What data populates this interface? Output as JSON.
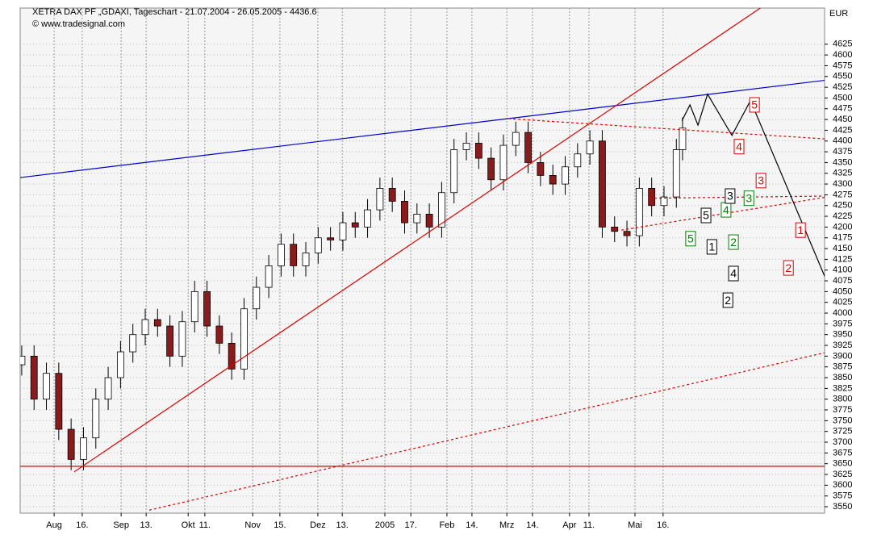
{
  "chart_data": {
    "type": "candlestick",
    "title": "XETRA DAX PF „GDAXI, Tageschart - 21.07.2004 - 26.05.2005 - 4436.6",
    "subtitle": "© www.tradesignal.com",
    "y_unit": "EUR",
    "xlim": [
      -0.5,
      260
    ],
    "ylim": [
      3535,
      4709
    ],
    "grid": true,
    "up_color": "#ffffff",
    "down_color": "#8b1a1a",
    "xticks": [
      {
        "value": 10.5,
        "label": "Aug"
      },
      {
        "value": 19.6,
        "label": "16."
      },
      {
        "value": 32.2,
        "label": "Sep"
      },
      {
        "value": 40.3,
        "label": "13."
      },
      {
        "value": 53.9,
        "label": "Okt"
      },
      {
        "value": 59.3,
        "label": "11."
      },
      {
        "value": 74.8,
        "label": "Nov"
      },
      {
        "value": 83.6,
        "label": "15."
      },
      {
        "value": 95.9,
        "label": "Dez"
      },
      {
        "value": 103.8,
        "label": "13."
      },
      {
        "value": 117.6,
        "label": "2005"
      },
      {
        "value": 126,
        "label": "17."
      },
      {
        "value": 137.7,
        "label": "Feb"
      },
      {
        "value": 145.8,
        "label": "14."
      },
      {
        "value": 157.1,
        "label": "Mrz"
      },
      {
        "value": 165.4,
        "label": "14."
      },
      {
        "value": 177.4,
        "label": "Apr"
      },
      {
        "value": 183.7,
        "label": "11."
      },
      {
        "value": 198.6,
        "label": "Mai"
      },
      {
        "value": 207.7,
        "label": "16."
      }
    ],
    "yticks": [
      3550,
      3575,
      3600,
      3625,
      3650,
      3675,
      3700,
      3725,
      3750,
      3775,
      3800,
      3825,
      3850,
      3875,
      3900,
      3925,
      3950,
      3975,
      4000,
      4025,
      4050,
      4075,
      4100,
      4125,
      4150,
      4175,
      4200,
      4225,
      4250,
      4275,
      4300,
      4325,
      4350,
      4375,
      4400,
      4425,
      4450,
      4475,
      4500,
      4525,
      4550,
      4575,
      4600,
      4625
    ],
    "x": [
      0,
      4,
      8,
      12,
      16,
      20,
      24,
      28,
      32,
      36,
      40,
      44,
      48,
      52,
      56,
      60,
      64,
      68,
      72,
      76,
      80,
      84,
      88,
      92,
      96,
      100,
      104,
      108,
      112,
      116,
      120,
      124,
      128,
      132,
      136,
      140,
      144,
      148,
      152,
      156,
      160,
      164,
      168,
      172,
      176,
      180,
      184,
      188,
      192,
      196,
      200,
      204,
      208,
      212,
      214
    ],
    "open": [
      3880,
      3900,
      3800,
      3860,
      3730,
      3660,
      3710,
      3800,
      3850,
      3910,
      3950,
      3985,
      3970,
      3900,
      3980,
      4050,
      3970,
      3930,
      3870,
      4010,
      4060,
      4110,
      4160,
      4110,
      4140,
      4175,
      4170,
      4210,
      4200,
      4240,
      4290,
      4260,
      4210,
      4230,
      4200,
      4280,
      4380,
      4395,
      4360,
      4310,
      4390,
      4420,
      4350,
      4320,
      4300,
      4340,
      4370,
      4400,
      4200,
      4190,
      4180,
      4290,
      4250,
      4270,
      4380
    ],
    "high": [
      3925,
      3925,
      3885,
      3885,
      3755,
      3735,
      3825,
      3875,
      3935,
      3975,
      4010,
      4010,
      3995,
      4005,
      4075,
      4075,
      3995,
      3955,
      4035,
      4085,
      4135,
      4185,
      4185,
      4165,
      4200,
      4200,
      4235,
      4235,
      4265,
      4315,
      4315,
      4285,
      4255,
      4255,
      4305,
      4405,
      4420,
      4420,
      4385,
      4415,
      4445,
      4445,
      4375,
      4345,
      4365,
      4395,
      4425,
      4425,
      4225,
      4215,
      4315,
      4315,
      4295,
      4405,
      4455
    ],
    "low": [
      3855,
      3775,
      3775,
      3705,
      3635,
      3635,
      3685,
      3775,
      3825,
      3885,
      3925,
      3945,
      3875,
      3875,
      3955,
      3945,
      3905,
      3845,
      3845,
      3985,
      4035,
      4085,
      4085,
      4085,
      4115,
      4145,
      4145,
      4175,
      4175,
      4215,
      4235,
      4185,
      4185,
      4175,
      4175,
      4255,
      4355,
      4335,
      4285,
      4285,
      4365,
      4325,
      4295,
      4275,
      4275,
      4315,
      4345,
      4175,
      4165,
      4155,
      4155,
      4225,
      4225,
      4245,
      4355
    ],
    "close": [
      3900,
      3800,
      3860,
      3730,
      3660,
      3710,
      3800,
      3850,
      3910,
      3950,
      3985,
      3970,
      3900,
      3980,
      4050,
      3970,
      3930,
      3870,
      4010,
      4060,
      4110,
      4160,
      4110,
      4140,
      4175,
      4170,
      4210,
      4200,
      4240,
      4290,
      4260,
      4210,
      4230,
      4200,
      4280,
      4380,
      4395,
      4360,
      4310,
      4390,
      4420,
      4350,
      4320,
      4300,
      4340,
      4370,
      4400,
      4200,
      4190,
      4180,
      4290,
      4250,
      4270,
      4380,
      4430
    ],
    "lines": [
      {
        "color": "#0000cc",
        "style": "solid",
        "x": [
          -0.5,
          260
        ],
        "y": [
          4315,
          4541
        ]
      },
      {
        "color": "#dd0000",
        "style": "solid",
        "x": [
          17,
          240
        ],
        "y": [
          3631,
          4713
        ]
      },
      {
        "color": "#dd0000",
        "style": "solid",
        "x": [
          -0.5,
          260
        ],
        "y": [
          3644,
          3644
        ]
      },
      {
        "color": "#dd0000",
        "style": "dashed",
        "x": [
          41.3,
          260
        ],
        "y": [
          3542,
          3908
        ]
      },
      {
        "color": "#dd0000",
        "style": "dashed",
        "x": [
          157.6,
          260
        ],
        "y": [
          4452,
          4405
        ]
      },
      {
        "color": "#dd0000",
        "style": "dashed",
        "x": [
          203.3,
          260
        ],
        "y": [
          4267,
          4272
        ]
      },
      {
        "color": "#dd0000",
        "style": "dashed",
        "x": [
          194.2,
          260
        ],
        "y": [
          4193,
          4269
        ]
      },
      {
        "color": "#000000",
        "style": "solid",
        "x": [
          213.8,
          216.4,
          219,
          222.1,
          230,
          236,
          260
        ],
        "y": [
          4447,
          4484,
          4437,
          4509,
          4413,
          4494,
          4086
        ]
      }
    ],
    "annotations": [
      {
        "text": "5",
        "color": "#dd0000",
        "x": 237.3,
        "y": 4484
      },
      {
        "text": "4",
        "color": "#dd0000",
        "x": 232.3,
        "y": 4387
      },
      {
        "text": "3",
        "color": "#dd0000",
        "x": 239.4,
        "y": 4308
      },
      {
        "text": "1",
        "color": "#dd0000",
        "x": 252.2,
        "y": 4193
      },
      {
        "text": "2",
        "color": "#dd0000",
        "x": 248.3,
        "y": 4105
      },
      {
        "text": "5",
        "color": "#008000",
        "x": 216.6,
        "y": 4173
      },
      {
        "text": "2",
        "color": "#008000",
        "x": 230.5,
        "y": 4165
      },
      {
        "text": "3",
        "color": "#008000",
        "x": 235.5,
        "y": 4267
      },
      {
        "text": "4",
        "color": "#008000",
        "x": 228.1,
        "y": 4240
      },
      {
        "text": "3",
        "color": "#000000",
        "x": 229.4,
        "y": 4272
      },
      {
        "text": "5",
        "color": "#000000",
        "x": 221.6,
        "y": 4227
      },
      {
        "text": "1",
        "color": "#000000",
        "x": 223.5,
        "y": 4154
      },
      {
        "text": "4",
        "color": "#000000",
        "x": 230.5,
        "y": 4092
      },
      {
        "text": "2",
        "color": "#000000",
        "x": 228.7,
        "y": 4030
      }
    ]
  }
}
